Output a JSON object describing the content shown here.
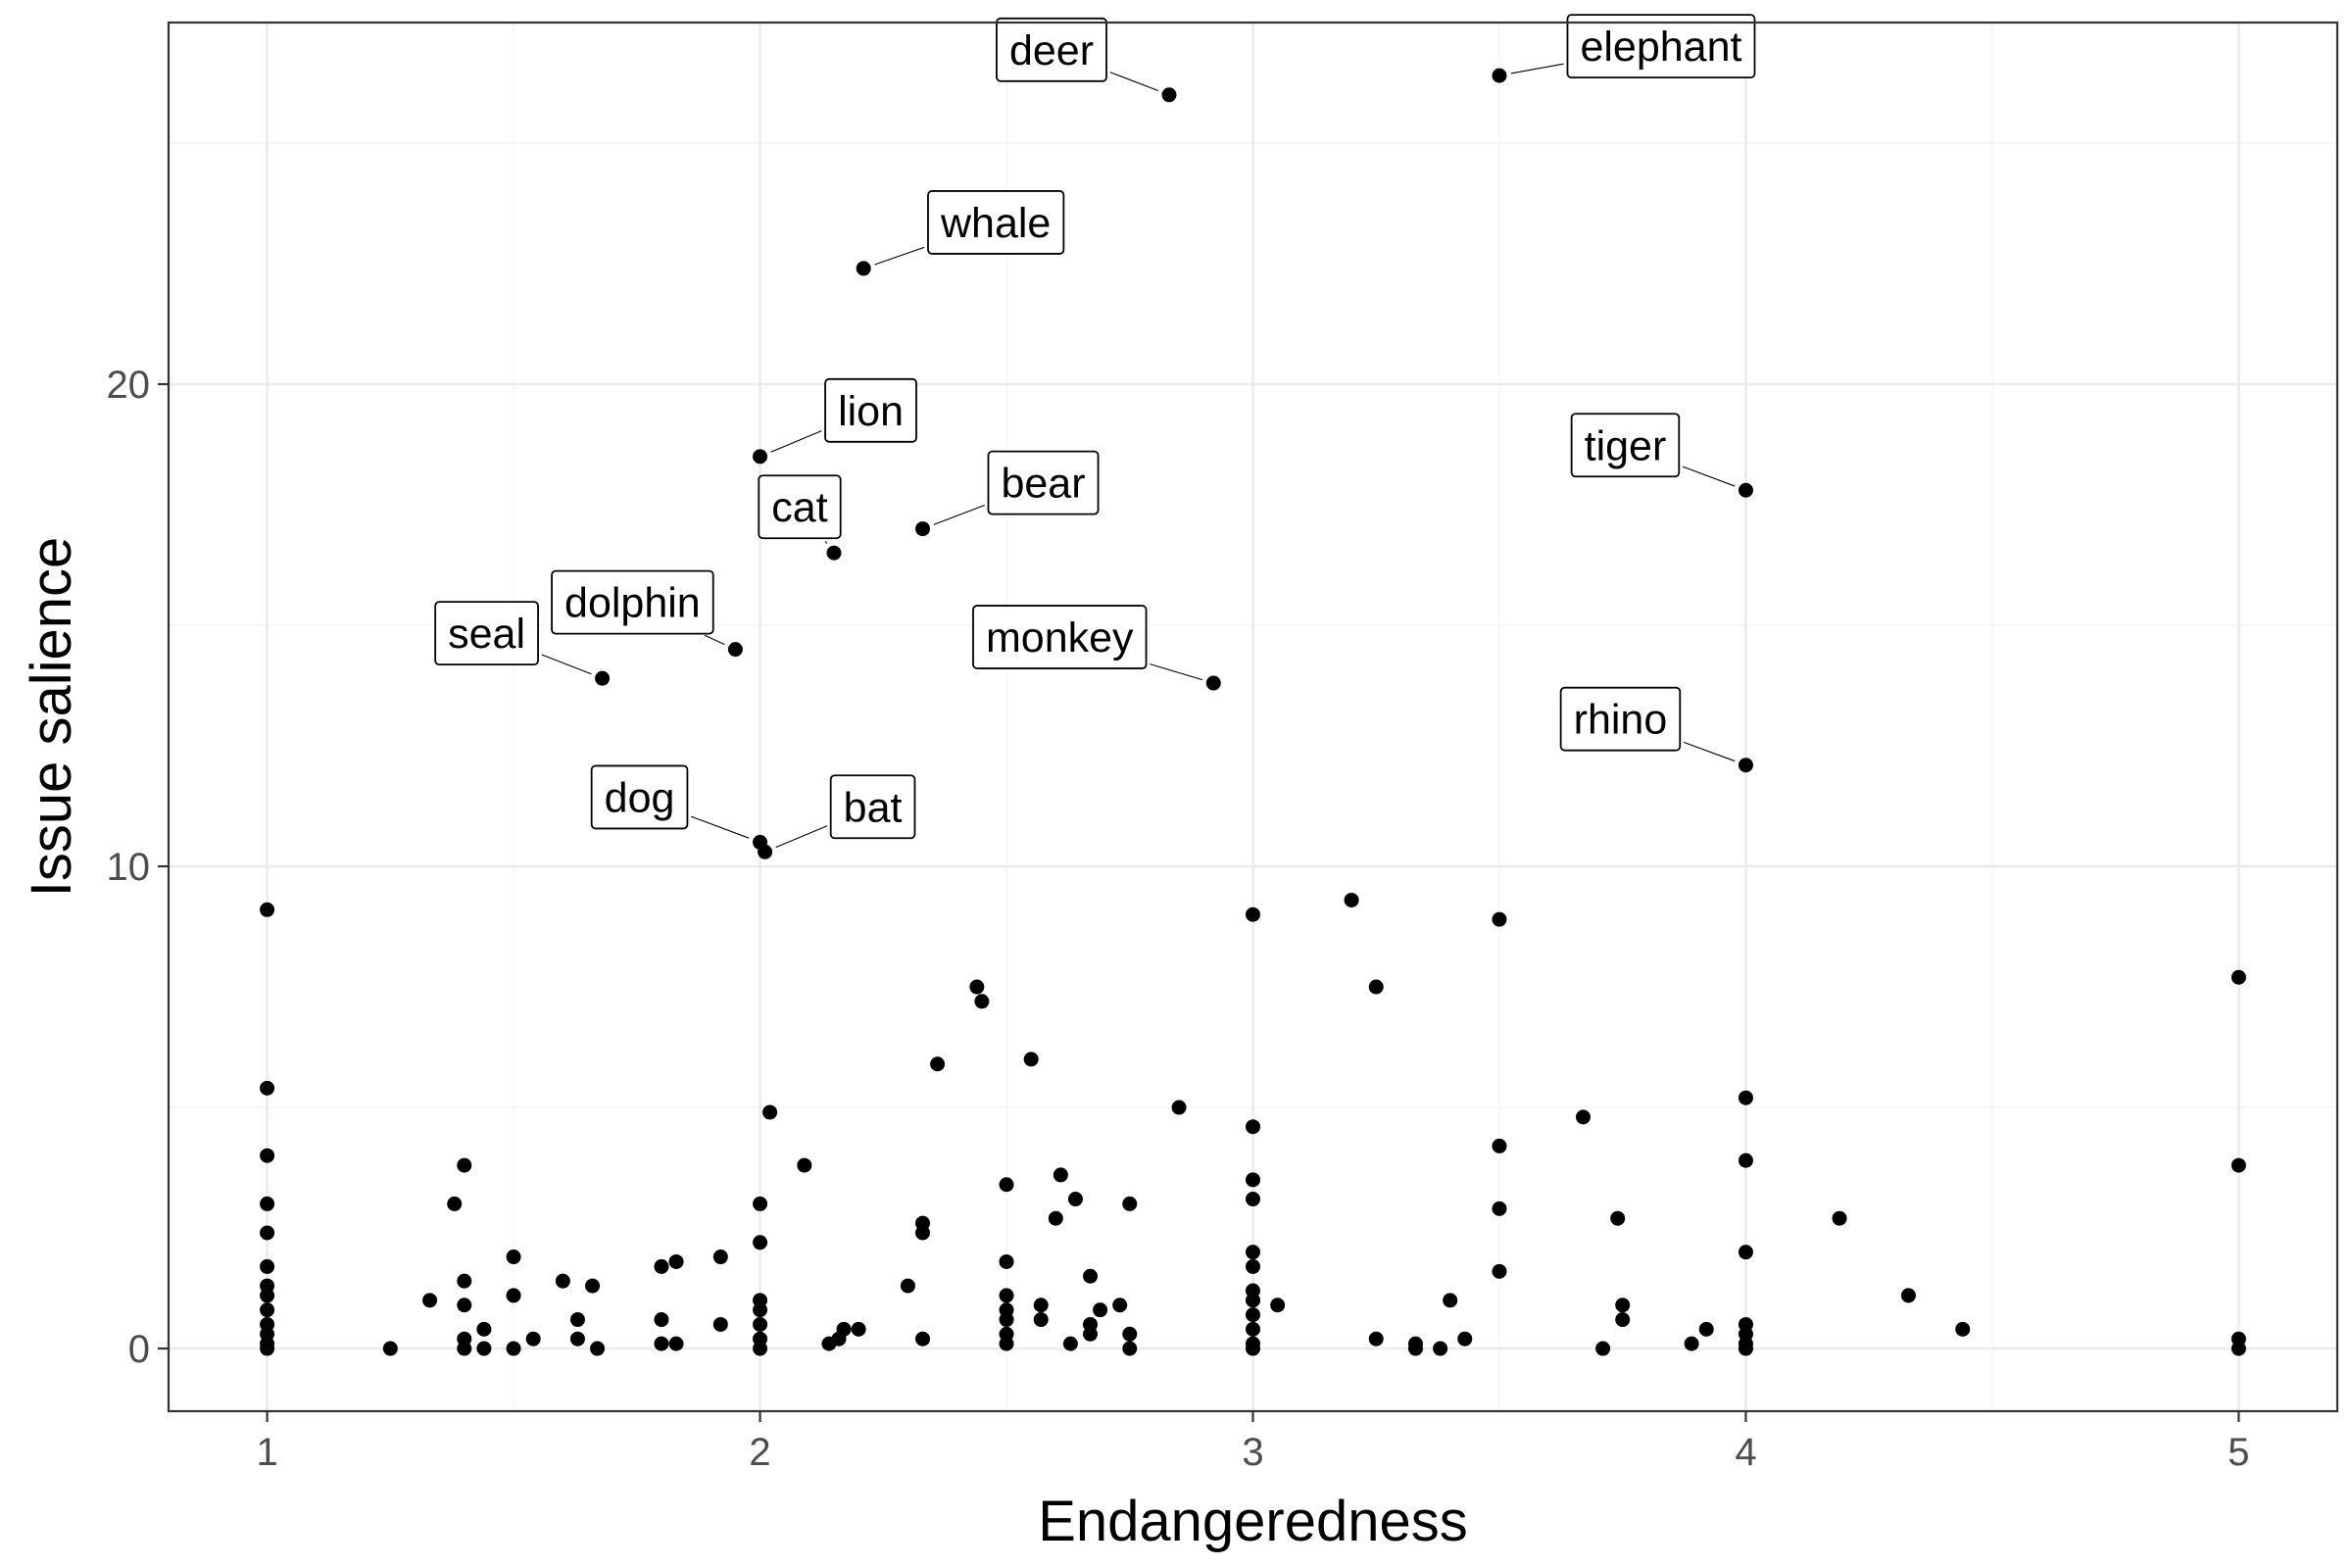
{
  "chart_data": {
    "type": "scatter",
    "title": "",
    "xlabel": "Endangeredness",
    "ylabel": "Issue salience",
    "xlim": [
      0.8,
      5.2
    ],
    "ylim": [
      -1.3,
      27.5
    ],
    "x_ticks": [
      1,
      2,
      3,
      4,
      5
    ],
    "y_ticks": [
      0,
      10,
      20
    ],
    "grid": true,
    "legend": "none",
    "point_color": "#000000",
    "points": [
      {
        "x": 2.83,
        "y": 26.0,
        "label": "deer"
      },
      {
        "x": 3.5,
        "y": 26.4,
        "label": "elephant"
      },
      {
        "x": 2.21,
        "y": 22.4,
        "label": "whale"
      },
      {
        "x": 2.0,
        "y": 18.5,
        "label": "lion"
      },
      {
        "x": 2.33,
        "y": 17.0,
        "label": "bear"
      },
      {
        "x": 2.15,
        "y": 16.5,
        "label": "cat"
      },
      {
        "x": 4.0,
        "y": 17.8,
        "label": "tiger"
      },
      {
        "x": 1.95,
        "y": 14.5,
        "label": "dolphin"
      },
      {
        "x": 1.68,
        "y": 13.9,
        "label": "seal"
      },
      {
        "x": 2.92,
        "y": 13.8,
        "label": "monkey"
      },
      {
        "x": 4.0,
        "y": 12.1,
        "label": "rhino"
      },
      {
        "x": 2.0,
        "y": 10.5,
        "label": "dog"
      },
      {
        "x": 2.01,
        "y": 10.3,
        "label": "bat"
      },
      {
        "x": 1.0,
        "y": 9.1
      },
      {
        "x": 1.0,
        "y": 5.4
      },
      {
        "x": 1.0,
        "y": 4.0
      },
      {
        "x": 1.0,
        "y": 3.0
      },
      {
        "x": 1.0,
        "y": 2.4
      },
      {
        "x": 1.0,
        "y": 1.7
      },
      {
        "x": 1.0,
        "y": 1.3
      },
      {
        "x": 1.0,
        "y": 1.1
      },
      {
        "x": 1.0,
        "y": 0.8
      },
      {
        "x": 1.0,
        "y": 0.5
      },
      {
        "x": 1.0,
        "y": 0.3
      },
      {
        "x": 1.0,
        "y": 0.1
      },
      {
        "x": 1.0,
        "y": 0.0
      },
      {
        "x": 1.25,
        "y": 0.0
      },
      {
        "x": 1.33,
        "y": 1.0
      },
      {
        "x": 1.38,
        "y": 3.0
      },
      {
        "x": 1.4,
        "y": 3.8
      },
      {
        "x": 1.4,
        "y": 1.4
      },
      {
        "x": 1.4,
        "y": 0.9
      },
      {
        "x": 1.4,
        "y": 0.2
      },
      {
        "x": 1.4,
        "y": 0.0
      },
      {
        "x": 1.44,
        "y": 0.4
      },
      {
        "x": 1.44,
        "y": 0.0
      },
      {
        "x": 1.5,
        "y": 1.9
      },
      {
        "x": 1.5,
        "y": 1.1
      },
      {
        "x": 1.5,
        "y": 0.0
      },
      {
        "x": 1.54,
        "y": 0.2
      },
      {
        "x": 1.6,
        "y": 1.4
      },
      {
        "x": 1.63,
        "y": 0.6
      },
      {
        "x": 1.63,
        "y": 0.2
      },
      {
        "x": 1.66,
        "y": 1.3
      },
      {
        "x": 1.67,
        "y": 0.0
      },
      {
        "x": 1.8,
        "y": 1.7
      },
      {
        "x": 1.8,
        "y": 0.6
      },
      {
        "x": 1.8,
        "y": 0.1
      },
      {
        "x": 1.83,
        "y": 1.8
      },
      {
        "x": 1.83,
        "y": 0.1
      },
      {
        "x": 1.92,
        "y": 1.9
      },
      {
        "x": 1.92,
        "y": 0.5
      },
      {
        "x": 2.0,
        "y": 3.0
      },
      {
        "x": 2.0,
        "y": 2.2
      },
      {
        "x": 2.0,
        "y": 1.0
      },
      {
        "x": 2.0,
        "y": 0.8
      },
      {
        "x": 2.0,
        "y": 0.5
      },
      {
        "x": 2.0,
        "y": 0.2
      },
      {
        "x": 2.0,
        "y": 0.0
      },
      {
        "x": 2.02,
        "y": 4.9
      },
      {
        "x": 2.09,
        "y": 3.8
      },
      {
        "x": 2.14,
        "y": 0.1
      },
      {
        "x": 2.16,
        "y": 0.2
      },
      {
        "x": 2.17,
        "y": 0.4
      },
      {
        "x": 2.2,
        "y": 0.4
      },
      {
        "x": 2.3,
        "y": 1.3
      },
      {
        "x": 2.33,
        "y": 2.6
      },
      {
        "x": 2.33,
        "y": 2.4
      },
      {
        "x": 2.33,
        "y": 0.2
      },
      {
        "x": 2.36,
        "y": 5.9
      },
      {
        "x": 2.44,
        "y": 7.5
      },
      {
        "x": 2.45,
        "y": 7.2
      },
      {
        "x": 2.5,
        "y": 3.4
      },
      {
        "x": 2.5,
        "y": 1.8
      },
      {
        "x": 2.5,
        "y": 1.1
      },
      {
        "x": 2.5,
        "y": 0.8
      },
      {
        "x": 2.5,
        "y": 0.6
      },
      {
        "x": 2.5,
        "y": 0.3
      },
      {
        "x": 2.5,
        "y": 0.1
      },
      {
        "x": 2.55,
        "y": 6.0
      },
      {
        "x": 2.57,
        "y": 0.9
      },
      {
        "x": 2.57,
        "y": 0.6
      },
      {
        "x": 2.6,
        "y": 2.7
      },
      {
        "x": 2.61,
        "y": 3.6
      },
      {
        "x": 2.63,
        "y": 0.1
      },
      {
        "x": 2.64,
        "y": 3.1
      },
      {
        "x": 2.67,
        "y": 1.5
      },
      {
        "x": 2.67,
        "y": 0.5
      },
      {
        "x": 2.67,
        "y": 0.3
      },
      {
        "x": 2.69,
        "y": 0.8
      },
      {
        "x": 2.73,
        "y": 0.9
      },
      {
        "x": 2.75,
        "y": 3.0
      },
      {
        "x": 2.75,
        "y": 0.3
      },
      {
        "x": 2.75,
        "y": 0.0
      },
      {
        "x": 2.85,
        "y": 5.0
      },
      {
        "x": 3.0,
        "y": 9.0
      },
      {
        "x": 3.0,
        "y": 4.6
      },
      {
        "x": 3.0,
        "y": 3.5
      },
      {
        "x": 3.0,
        "y": 3.1
      },
      {
        "x": 3.0,
        "y": 2.0
      },
      {
        "x": 3.0,
        "y": 1.7
      },
      {
        "x": 3.0,
        "y": 1.2
      },
      {
        "x": 3.0,
        "y": 1.0
      },
      {
        "x": 3.0,
        "y": 0.7
      },
      {
        "x": 3.0,
        "y": 0.4
      },
      {
        "x": 3.0,
        "y": 0.1
      },
      {
        "x": 3.0,
        "y": 0.0
      },
      {
        "x": 3.05,
        "y": 0.9
      },
      {
        "x": 3.2,
        "y": 9.3
      },
      {
        "x": 3.25,
        "y": 7.5
      },
      {
        "x": 3.25,
        "y": 0.2
      },
      {
        "x": 3.33,
        "y": 0.1
      },
      {
        "x": 3.33,
        "y": 0.0
      },
      {
        "x": 3.38,
        "y": 0.0
      },
      {
        "x": 3.4,
        "y": 1.0
      },
      {
        "x": 3.43,
        "y": 0.2
      },
      {
        "x": 3.5,
        "y": 8.9
      },
      {
        "x": 3.5,
        "y": 4.2
      },
      {
        "x": 3.5,
        "y": 2.9
      },
      {
        "x": 3.5,
        "y": 1.6
      },
      {
        "x": 3.67,
        "y": 4.8
      },
      {
        "x": 3.71,
        "y": 0.0
      },
      {
        "x": 3.74,
        "y": 2.7
      },
      {
        "x": 3.75,
        "y": 0.9
      },
      {
        "x": 3.75,
        "y": 0.6
      },
      {
        "x": 3.89,
        "y": 0.1
      },
      {
        "x": 3.92,
        "y": 0.4
      },
      {
        "x": 4.0,
        "y": 5.2
      },
      {
        "x": 4.0,
        "y": 3.9
      },
      {
        "x": 4.0,
        "y": 2.0
      },
      {
        "x": 4.0,
        "y": 0.5
      },
      {
        "x": 4.0,
        "y": 0.3
      },
      {
        "x": 4.0,
        "y": 0.1
      },
      {
        "x": 4.0,
        "y": 0.0
      },
      {
        "x": 4.19,
        "y": 2.7
      },
      {
        "x": 4.33,
        "y": 1.1
      },
      {
        "x": 4.44,
        "y": 0.4
      },
      {
        "x": 5.0,
        "y": 7.7
      },
      {
        "x": 5.0,
        "y": 3.8
      },
      {
        "x": 5.0,
        "y": 0.2
      },
      {
        "x": 5.0,
        "y": 0.0
      }
    ]
  }
}
